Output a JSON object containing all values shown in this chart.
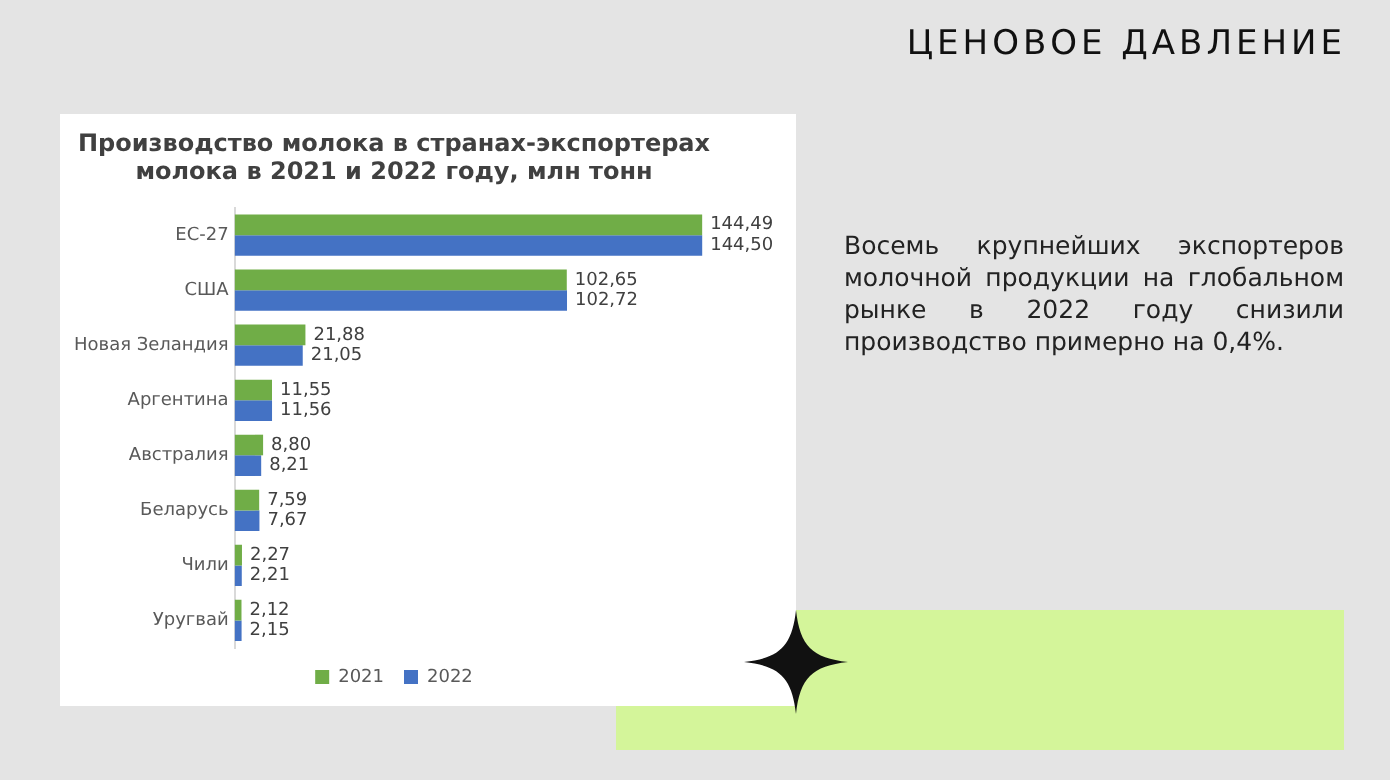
{
  "chart_data": {
    "type": "bar",
    "orientation": "horizontal",
    "title": [
      "Производство молока в странах-экспортерах",
      "молока в 2021 и 2022 году, млн тонн"
    ],
    "categories": [
      "ЕС-27",
      "США",
      "Новая Зеландия",
      "Аргентина",
      "Австралия",
      "Беларусь",
      "Чили",
      "Уругвай"
    ],
    "series": [
      {
        "name": "2021",
        "color": "#70ad47",
        "values": [
          144.49,
          102.65,
          21.88,
          11.55,
          8.8,
          7.59,
          2.27,
          2.12
        ],
        "value_labels": [
          "144,49",
          "102,65",
          "21,88",
          "11,55",
          "8,80",
          "7,59",
          "2,27",
          "2,12"
        ]
      },
      {
        "name": "2022",
        "color": "#4472c4",
        "values": [
          144.5,
          102.72,
          21.05,
          11.56,
          8.21,
          7.67,
          2.21,
          2.15
        ],
        "value_labels": [
          "144,50",
          "102,72",
          "21,05",
          "11,56",
          "8,21",
          "7,67",
          "2,21",
          "2,15"
        ]
      }
    ],
    "legend": "bottom",
    "grid": false,
    "tick_labels": "y",
    "annotations": [
      "ЦЕНОВОЕ ДАВЛЕНИЕ",
      "Восемь крупнейших экспортеров молочной продукции на глобальном рынке в 2022 году снизили производство примерно на 0,4%."
    ]
  }
}
